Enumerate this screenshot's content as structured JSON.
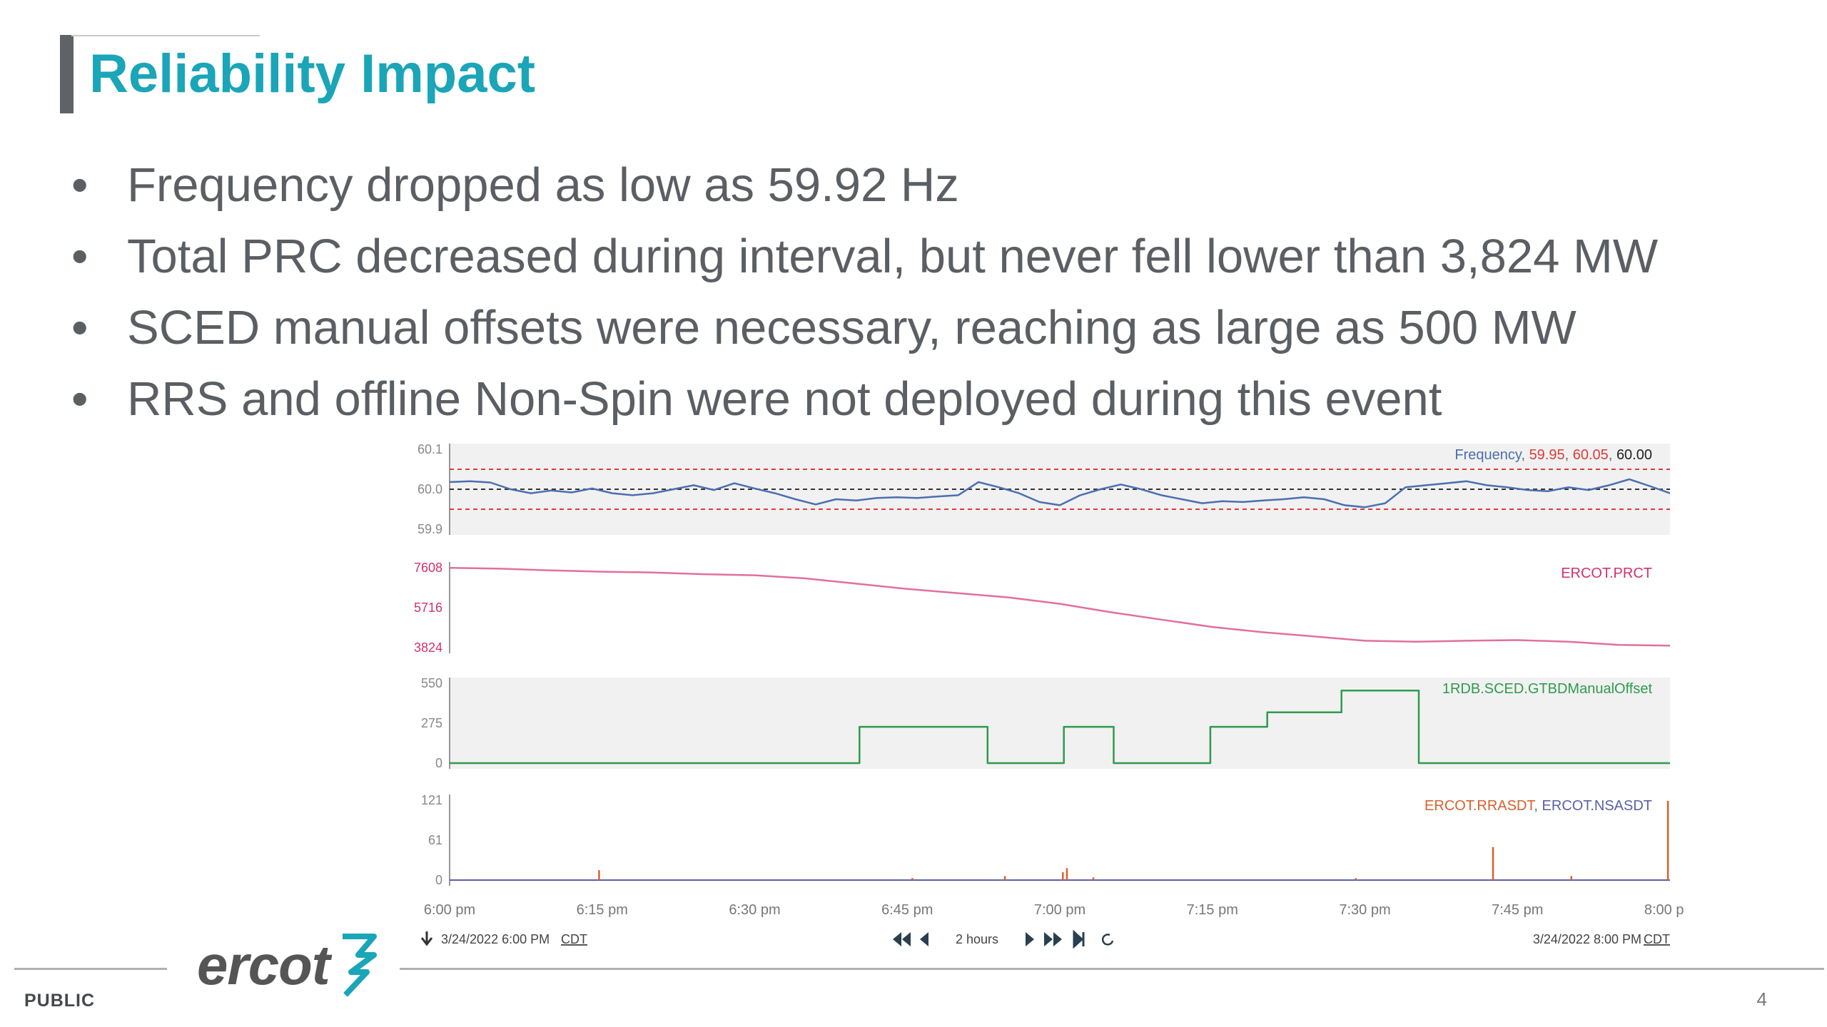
{
  "slide": {
    "title": "Reliability Impact",
    "bullets": [
      "Frequency dropped as low as 59.92 Hz",
      "Total PRC decreased during interval, but never fell lower than 3,824 MW",
      "SCED manual offsets were necessary, reaching as large as 500 MW",
      "RRS and offline Non-Spin were not deployed during this event"
    ],
    "footer": {
      "classification": "PUBLIC",
      "page_number": "4",
      "logo_text": "ercot"
    }
  },
  "chart_data": {
    "type": "line",
    "x_labels": [
      "6:00 pm",
      "6:15 pm",
      "6:30 pm",
      "6:45 pm",
      "7:00 pm",
      "7:15 pm",
      "7:30 pm",
      "7:45 pm",
      "8:00 pm"
    ],
    "x_range_minutes": [
      0,
      120
    ],
    "nav": {
      "start": "3/24/2022 6:00 PM",
      "end": "3/24/2022 8:00 PM",
      "tz": "CDT",
      "span": "2 hours"
    },
    "panels": [
      {
        "id": "frequency",
        "ylim": [
          59.9,
          60.1
        ],
        "yticks": [
          "60.1",
          "60.0",
          "59.9"
        ],
        "tick_color": "#888888",
        "legend": [
          {
            "text": "Frequency",
            "color": "#4a6fb0"
          },
          {
            "text": "59.95",
            "color": "#e03a3a"
          },
          {
            "text": "60.05",
            "color": "#e03a3a"
          },
          {
            "text": "60.00",
            "color": "#222222"
          }
        ],
        "ref_lines": [
          {
            "y": 60.05,
            "color": "#e03a3a"
          },
          {
            "y": 60.0,
            "color": "#333333"
          },
          {
            "y": 59.95,
            "color": "#e03a3a"
          }
        ],
        "shaded": true,
        "series": [
          {
            "name": "Frequency",
            "color": "#4a6fb0",
            "step": false,
            "points": [
              [
                0,
                60.018
              ],
              [
                2,
                60.02
              ],
              [
                4,
                60.017
              ],
              [
                6,
                60.0
              ],
              [
                8,
                59.99
              ],
              [
                10,
                59.997
              ],
              [
                12,
                59.992
              ],
              [
                14,
                60.002
              ],
              [
                16,
                59.99
              ],
              [
                18,
                59.985
              ],
              [
                20,
                59.99
              ],
              [
                22,
                60.0
              ],
              [
                24,
                60.01
              ],
              [
                26,
                59.998
              ],
              [
                28,
                60.015
              ],
              [
                30,
                60.002
              ],
              [
                32,
                59.99
              ],
              [
                34,
                59.975
              ],
              [
                36,
                59.962
              ],
              [
                38,
                59.975
              ],
              [
                40,
                59.972
              ],
              [
                42,
                59.978
              ],
              [
                44,
                59.98
              ],
              [
                46,
                59.978
              ],
              [
                48,
                59.982
              ],
              [
                50,
                59.985
              ],
              [
                52,
                60.018
              ],
              [
                54,
                60.005
              ],
              [
                56,
                59.99
              ],
              [
                58,
                59.968
              ],
              [
                60,
                59.96
              ],
              [
                62,
                59.985
              ],
              [
                64,
                60.0
              ],
              [
                66,
                60.012
              ],
              [
                68,
                60.0
              ],
              [
                70,
                59.985
              ],
              [
                72,
                59.975
              ],
              [
                74,
                59.965
              ],
              [
                76,
                59.97
              ],
              [
                78,
                59.968
              ],
              [
                80,
                59.972
              ],
              [
                82,
                59.975
              ],
              [
                84,
                59.98
              ],
              [
                86,
                59.975
              ],
              [
                88,
                59.96
              ],
              [
                90,
                59.955
              ],
              [
                92,
                59.965
              ],
              [
                94,
                60.005
              ],
              [
                96,
                60.01
              ],
              [
                98,
                60.015
              ],
              [
                100,
                60.02
              ],
              [
                102,
                60.01
              ],
              [
                104,
                60.005
              ],
              [
                106,
                59.998
              ],
              [
                108,
                59.995
              ],
              [
                110,
                60.005
              ],
              [
                112,
                59.998
              ],
              [
                114,
                60.01
              ],
              [
                116,
                60.025
              ],
              [
                118,
                60.008
              ],
              [
                120,
                59.99
              ]
            ]
          }
        ]
      },
      {
        "id": "prc",
        "ylim": [
          3824,
          7608
        ],
        "yticks": [
          "7608",
          "5716",
          "3824"
        ],
        "tick_color": "#d0326e",
        "legend": [
          {
            "text": "ERCOT.PRCT",
            "color": "#d0326e"
          }
        ],
        "ref_lines": [],
        "shaded": false,
        "series": [
          {
            "name": "ERCOT.PRCT",
            "color": "#e0709e",
            "step": false,
            "points": [
              [
                0,
                7600
              ],
              [
                5,
                7560
              ],
              [
                10,
                7480
              ],
              [
                15,
                7420
              ],
              [
                20,
                7380
              ],
              [
                25,
                7300
              ],
              [
                30,
                7250
              ],
              [
                35,
                7100
              ],
              [
                40,
                6850
              ],
              [
                45,
                6600
              ],
              [
                50,
                6400
              ],
              [
                55,
                6200
              ],
              [
                60,
                5900
              ],
              [
                65,
                5500
              ],
              [
                70,
                5150
              ],
              [
                75,
                4800
              ],
              [
                80,
                4550
              ],
              [
                85,
                4350
              ],
              [
                90,
                4150
              ],
              [
                95,
                4100
              ],
              [
                100,
                4150
              ],
              [
                105,
                4180
              ],
              [
                110,
                4100
              ],
              [
                115,
                3950
              ],
              [
                120,
                3920
              ]
            ]
          }
        ]
      },
      {
        "id": "manual_offset",
        "ylim": [
          0,
          550
        ],
        "yticks": [
          "550",
          "275",
          "0"
        ],
        "tick_color": "#888888",
        "legend": [
          {
            "text": "1RDB.SCED.GTBDManualOffset",
            "color": "#2e9b4c"
          }
        ],
        "ref_lines": [],
        "shaded": true,
        "series": [
          {
            "name": "1RDB.SCED.GTBDManualOffset",
            "color": "#2e9b4c",
            "step": true,
            "points": [
              [
                0,
                0
              ],
              [
                40.3,
                250
              ],
              [
                52.9,
                0
              ],
              [
                60.4,
                250
              ],
              [
                65.3,
                0
              ],
              [
                74.8,
                250
              ],
              [
                80.4,
                350
              ],
              [
                87.7,
                500
              ],
              [
                95.3,
                0
              ],
              [
                120,
                0
              ]
            ]
          }
        ]
      },
      {
        "id": "deployments",
        "ylim": [
          0,
          121
        ],
        "yticks": [
          "121",
          "61",
          "0"
        ],
        "tick_color": "#888888",
        "legend": [
          {
            "text": "ERCOT.RRASDT",
            "color": "#d9602c"
          },
          {
            "text": "ERCOT.NSASDT",
            "color": "#5a5fa8"
          }
        ],
        "ref_lines": [],
        "shaded": false,
        "series": [
          {
            "name": "ERCOT.RRASDT",
            "color": "#d9602c",
            "spikes": [
              [
                14.7,
                15
              ],
              [
                45.5,
                3
              ],
              [
                54.6,
                6
              ],
              [
                60.3,
                12
              ],
              [
                60.7,
                18
              ],
              [
                63.3,
                4
              ],
              [
                89.1,
                3
              ],
              [
                102.6,
                50
              ],
              [
                110.3,
                6
              ],
              [
                119.8,
                120
              ]
            ]
          },
          {
            "name": "ERCOT.NSASDT",
            "color": "#5a5fa8",
            "spikes": []
          }
        ]
      }
    ]
  }
}
